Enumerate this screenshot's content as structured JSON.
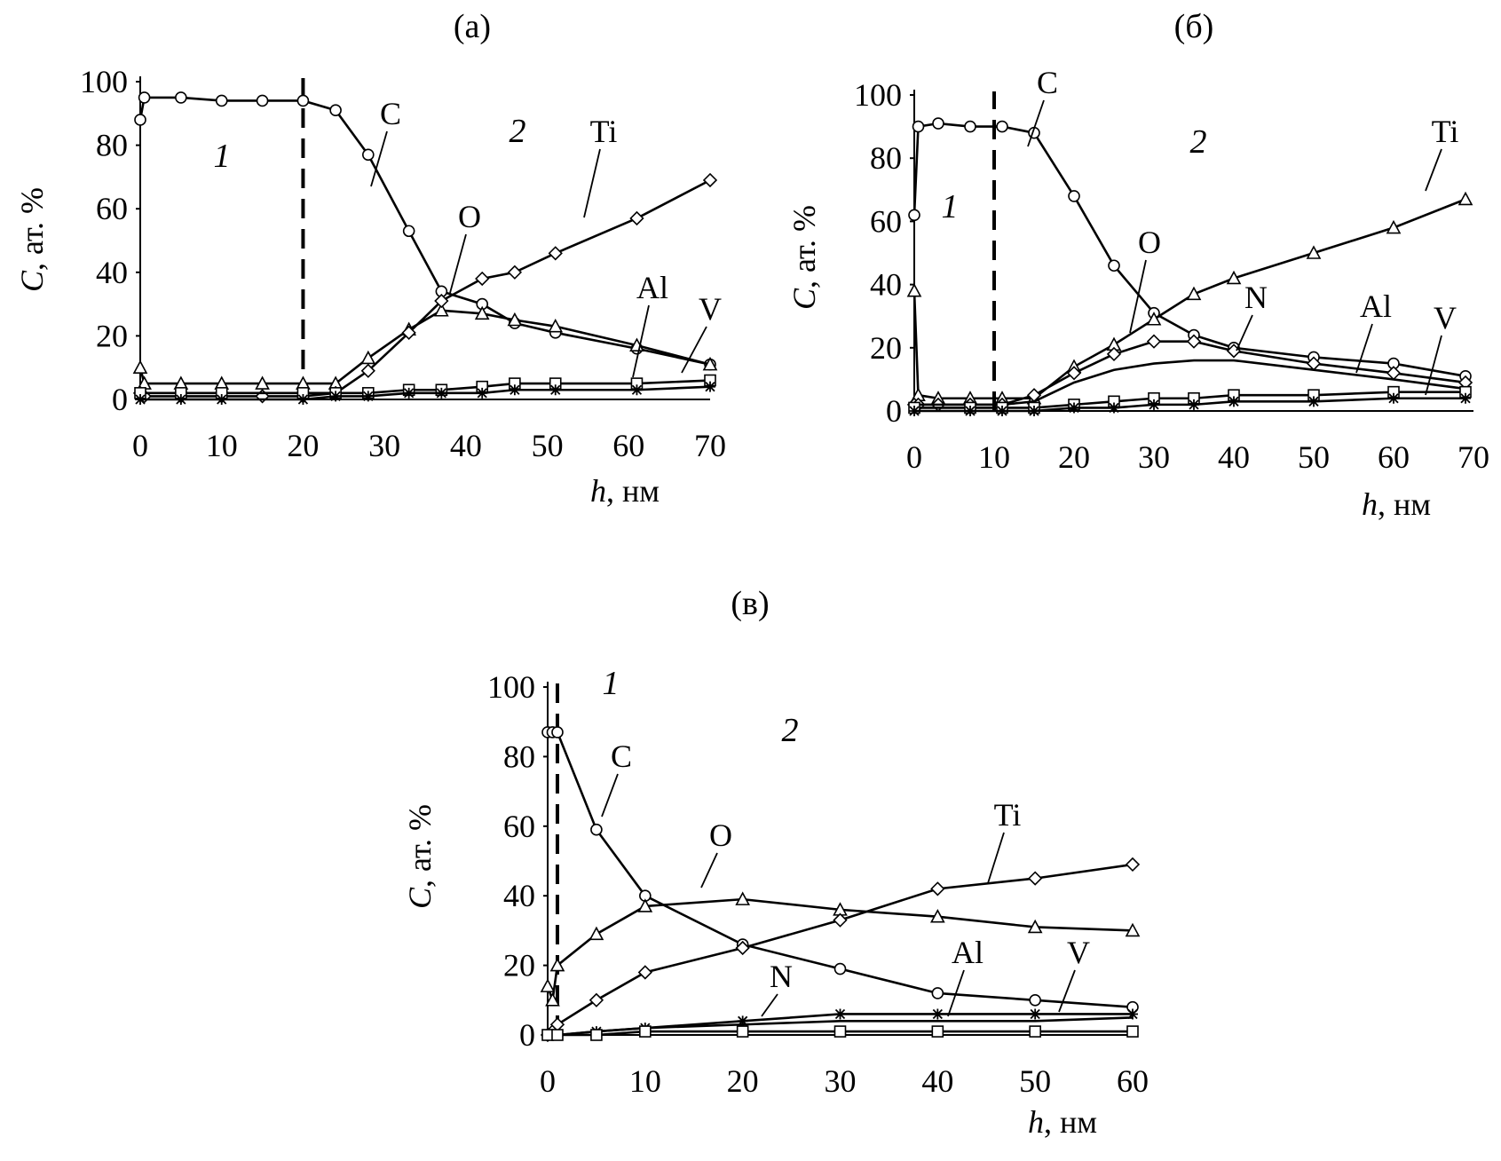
{
  "chart_data": [
    {
      "type": "line",
      "title": "(а)",
      "ylabel": "C, ат. %",
      "xlabel": "h, нм",
      "xlim": [
        0,
        70
      ],
      "ylim": [
        0,
        100
      ],
      "xticks": [
        0,
        10,
        20,
        30,
        40,
        50,
        60,
        70
      ],
      "yticks": [
        0,
        20,
        40,
        60,
        80,
        100
      ],
      "divider_x": 20,
      "region_labels": [
        "1",
        "2"
      ],
      "series": [
        {
          "name": "C",
          "marker": "circle",
          "x": [
            0,
            0.5,
            5,
            10,
            15,
            20,
            24,
            28,
            33,
            37,
            42,
            46,
            51,
            61,
            70
          ],
          "y": [
            88,
            95,
            95,
            94,
            94,
            94,
            91,
            77,
            53,
            34,
            30,
            24,
            21,
            16,
            11
          ]
        },
        {
          "name": "O",
          "marker": "triangle",
          "x": [
            0,
            0.5,
            5,
            10,
            15,
            20,
            24,
            28,
            33,
            37,
            42,
            46,
            51,
            61,
            70
          ],
          "y": [
            10,
            5,
            5,
            5,
            5,
            5,
            5,
            13,
            22,
            28,
            27,
            25,
            23,
            17,
            11
          ]
        },
        {
          "name": "Ti",
          "marker": "diamond",
          "x": [
            0,
            0.5,
            5,
            10,
            15,
            20,
            24,
            28,
            33,
            37,
            42,
            46,
            51,
            61,
            70
          ],
          "y": [
            2,
            1,
            1,
            1,
            1,
            1,
            2,
            9,
            21,
            31,
            38,
            40,
            46,
            57,
            69
          ]
        },
        {
          "name": "Al",
          "marker": "square",
          "x": [
            0,
            5,
            10,
            20,
            24,
            28,
            33,
            37,
            42,
            46,
            51,
            61,
            70
          ],
          "y": [
            2,
            2,
            2,
            2,
            2,
            2,
            3,
            3,
            4,
            5,
            5,
            5,
            6
          ]
        },
        {
          "name": "V",
          "marker": "star",
          "x": [
            0,
            5,
            10,
            20,
            24,
            28,
            33,
            37,
            42,
            46,
            51,
            61,
            70
          ],
          "y": [
            0,
            0,
            0,
            0,
            1,
            1,
            2,
            2,
            2,
            3,
            3,
            3,
            4
          ]
        }
      ],
      "annotations": [
        "C",
        "Ti",
        "O",
        "Al",
        "V"
      ]
    },
    {
      "type": "line",
      "title": "(б)",
      "ylabel": "C, ат. %",
      "xlabel": "h, нм",
      "xlim": [
        0,
        70
      ],
      "ylim": [
        0,
        100
      ],
      "xticks": [
        0,
        10,
        20,
        30,
        40,
        50,
        60,
        70
      ],
      "yticks": [
        0,
        20,
        40,
        60,
        80,
        100
      ],
      "divider_x": 10,
      "region_labels": [
        "1",
        "2"
      ],
      "series": [
        {
          "name": "C",
          "marker": "circle",
          "x": [
            0,
            0.5,
            3,
            7,
            11,
            15,
            20,
            25,
            30,
            35,
            40,
            50,
            60,
            69
          ],
          "y": [
            62,
            90,
            91,
            90,
            90,
            88,
            68,
            46,
            31,
            24,
            20,
            17,
            15,
            11
          ]
        },
        {
          "name": "Ti",
          "marker": "triangle",
          "x": [
            0,
            0.5,
            3,
            7,
            11,
            15,
            20,
            25,
            30,
            35,
            40,
            50,
            60,
            69
          ],
          "y": [
            38,
            5,
            4,
            4,
            4,
            4,
            14,
            21,
            29,
            37,
            42,
            50,
            58,
            67
          ]
        },
        {
          "name": "O",
          "marker": "diamond",
          "x": [
            0,
            0.5,
            3,
            7,
            11,
            15,
            20,
            25,
            30,
            35,
            40,
            50,
            60,
            69
          ],
          "y": [
            2,
            2,
            2,
            2,
            2,
            5,
            12,
            18,
            22,
            22,
            19,
            15,
            12,
            9
          ]
        },
        {
          "name": "N",
          "marker": "none",
          "x": [
            0,
            7,
            11,
            15,
            20,
            25,
            30,
            35,
            40,
            50,
            60,
            69
          ],
          "y": [
            2,
            2,
            2,
            3,
            9,
            13,
            15,
            16,
            16,
            13,
            10,
            7
          ]
        },
        {
          "name": "Al",
          "marker": "square",
          "x": [
            0,
            7,
            11,
            15,
            20,
            25,
            30,
            35,
            40,
            50,
            60,
            69
          ],
          "y": [
            1,
            1,
            1,
            1,
            2,
            3,
            4,
            4,
            5,
            5,
            6,
            6
          ]
        },
        {
          "name": "V",
          "marker": "star",
          "x": [
            0,
            7,
            11,
            15,
            20,
            25,
            30,
            35,
            40,
            50,
            60,
            69
          ],
          "y": [
            0,
            0,
            0,
            0,
            1,
            1,
            2,
            2,
            3,
            3,
            4,
            4
          ]
        }
      ],
      "annotations": [
        "C",
        "Ti",
        "O",
        "N",
        "Al",
        "V"
      ]
    },
    {
      "type": "line",
      "title": "(в)",
      "ylabel": "C, ат. %",
      "xlabel": "h, нм",
      "xlim": [
        0,
        60
      ],
      "ylim": [
        0,
        100
      ],
      "xticks": [
        0,
        10,
        20,
        30,
        40,
        50,
        60
      ],
      "yticks": [
        0,
        20,
        40,
        60,
        80,
        100
      ],
      "divider_x": 1,
      "region_labels": [
        "1",
        "2"
      ],
      "series": [
        {
          "name": "C",
          "marker": "circle",
          "x": [
            0,
            0.5,
            1,
            5,
            10,
            20,
            30,
            40,
            50,
            60
          ],
          "y": [
            87,
            87,
            87,
            59,
            40,
            26,
            19,
            12,
            10,
            8
          ]
        },
        {
          "name": "O",
          "marker": "triangle",
          "x": [
            0,
            0.5,
            1,
            5,
            10,
            20,
            30,
            40,
            50,
            60
          ],
          "y": [
            14,
            10,
            20,
            29,
            37,
            39,
            36,
            34,
            31,
            30
          ]
        },
        {
          "name": "Ti",
          "marker": "diamond",
          "x": [
            0,
            0.5,
            1,
            5,
            10,
            20,
            30,
            40,
            50,
            60
          ],
          "y": [
            0,
            1,
            3,
            10,
            18,
            25,
            33,
            42,
            45,
            49
          ]
        },
        {
          "name": "N",
          "marker": "star",
          "x": [
            0,
            1,
            5,
            10,
            20,
            30,
            40,
            50,
            60
          ],
          "y": [
            0,
            0,
            1,
            2,
            4,
            6,
            6,
            6,
            6
          ]
        },
        {
          "name": "Al",
          "marker": "none",
          "x": [
            0,
            1,
            5,
            10,
            20,
            30,
            40,
            50,
            60
          ],
          "y": [
            0,
            0,
            1,
            2,
            3,
            4,
            4,
            4,
            5
          ]
        },
        {
          "name": "V",
          "marker": "square",
          "x": [
            0,
            1,
            5,
            10,
            20,
            30,
            40,
            50,
            60
          ],
          "y": [
            0,
            0,
            0,
            1,
            1,
            1,
            1,
            1,
            1
          ]
        }
      ],
      "annotations": [
        "C",
        "O",
        "Ti",
        "N",
        "Al",
        "V"
      ]
    }
  ]
}
